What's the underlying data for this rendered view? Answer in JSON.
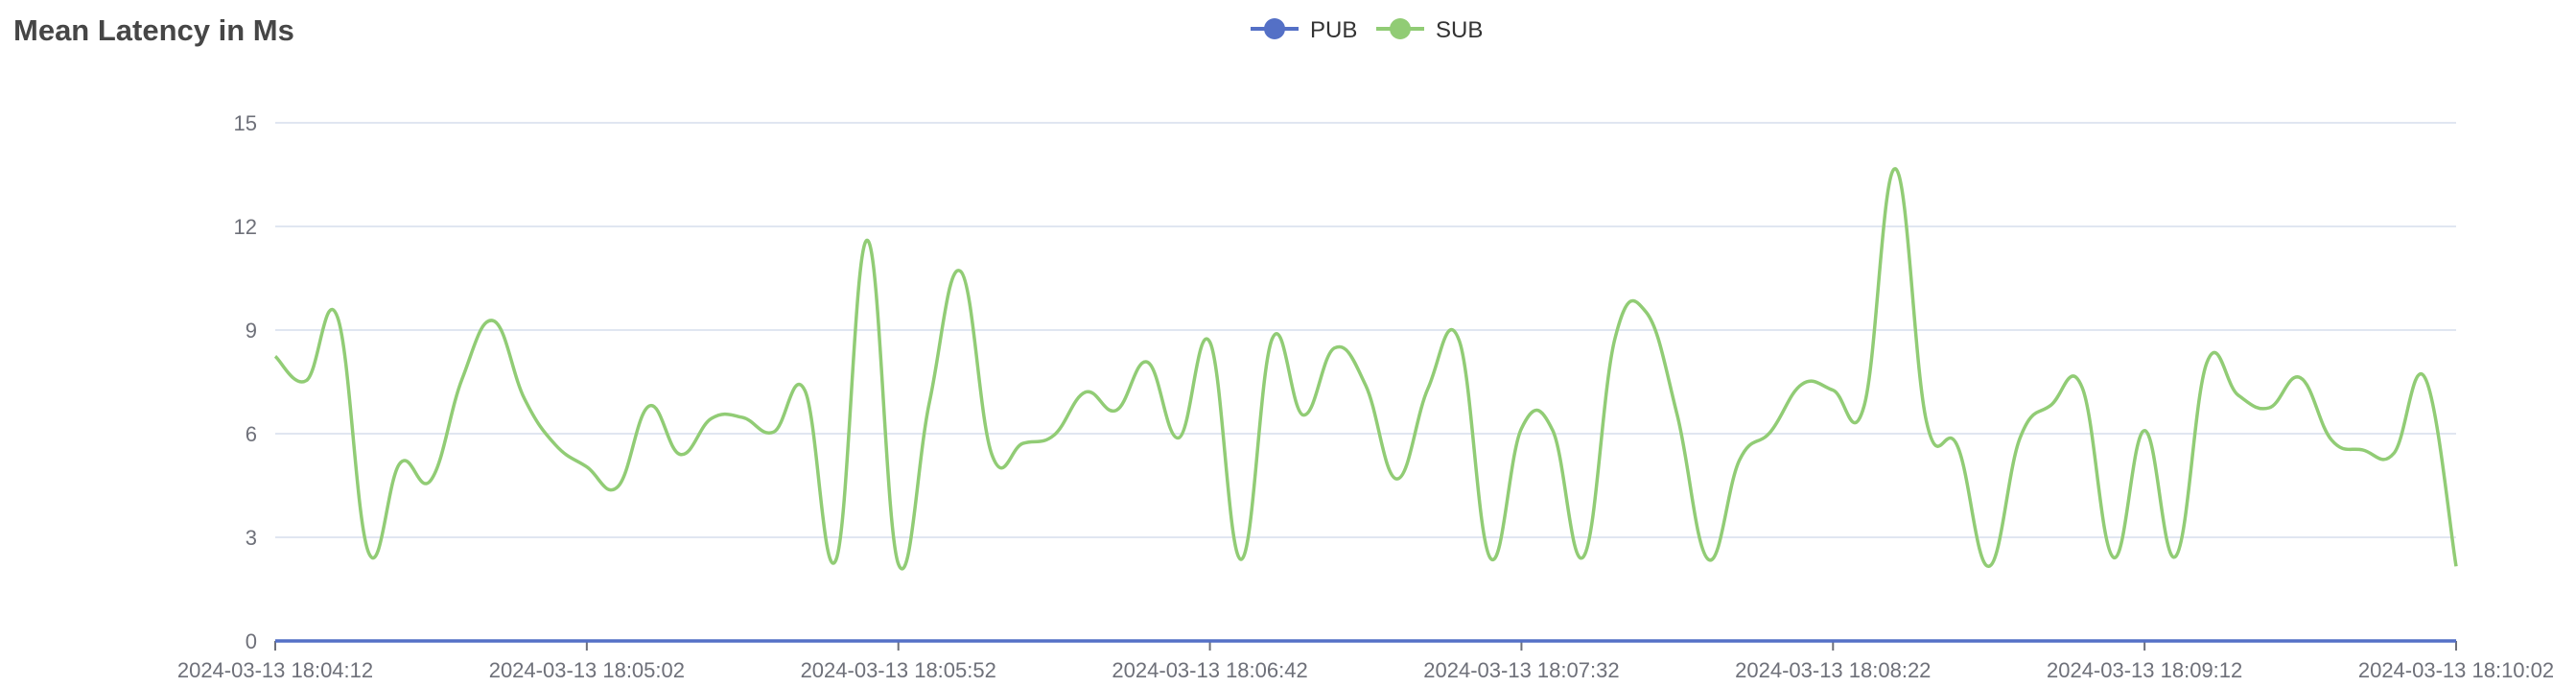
{
  "chart_data": {
    "type": "line",
    "title": "Mean Latency in Ms",
    "xlabel": "",
    "ylabel": "",
    "ylim": [
      0,
      15
    ],
    "yticks": [
      0,
      3,
      6,
      9,
      12,
      15
    ],
    "xtick_labels": [
      "2024-03-13 18:04:12",
      "2024-03-13 18:05:02",
      "2024-03-13 18:05:52",
      "2024-03-13 18:06:42",
      "2024-03-13 18:07:32",
      "2024-03-13 18:08:22",
      "2024-03-13 18:09:12",
      "2024-03-13 18:10:02"
    ],
    "grid": true,
    "smooth": true,
    "legend_position": "top-center",
    "x": [
      "2024-03-13 18:04:12",
      "2024-03-13 18:04:17",
      "2024-03-13 18:04:22",
      "2024-03-13 18:04:27",
      "2024-03-13 18:04:32",
      "2024-03-13 18:04:37",
      "2024-03-13 18:04:42",
      "2024-03-13 18:04:47",
      "2024-03-13 18:04:52",
      "2024-03-13 18:04:57",
      "2024-03-13 18:05:02",
      "2024-03-13 18:05:07",
      "2024-03-13 18:05:12",
      "2024-03-13 18:05:17",
      "2024-03-13 18:05:22",
      "2024-03-13 18:05:27",
      "2024-03-13 18:05:32",
      "2024-03-13 18:05:37",
      "2024-03-13 18:05:42",
      "2024-03-13 18:05:47",
      "2024-03-13 18:05:52",
      "2024-03-13 18:05:57",
      "2024-03-13 18:06:02",
      "2024-03-13 18:06:07",
      "2024-03-13 18:06:12",
      "2024-03-13 18:06:17",
      "2024-03-13 18:06:22",
      "2024-03-13 18:06:27",
      "2024-03-13 18:06:32",
      "2024-03-13 18:06:37",
      "2024-03-13 18:06:42",
      "2024-03-13 18:06:47",
      "2024-03-13 18:06:52",
      "2024-03-13 18:06:57",
      "2024-03-13 18:07:02",
      "2024-03-13 18:07:07",
      "2024-03-13 18:07:12",
      "2024-03-13 18:07:17",
      "2024-03-13 18:07:22",
      "2024-03-13 18:07:27",
      "2024-03-13 18:07:32",
      "2024-03-13 18:07:37",
      "2024-03-13 18:07:42",
      "2024-03-13 18:07:47",
      "2024-03-13 18:07:52",
      "2024-03-13 18:07:57",
      "2024-03-13 18:08:02",
      "2024-03-13 18:08:07",
      "2024-03-13 18:08:12",
      "2024-03-13 18:08:17",
      "2024-03-13 18:08:22",
      "2024-03-13 18:08:27",
      "2024-03-13 18:08:32",
      "2024-03-13 18:08:37",
      "2024-03-13 18:08:42",
      "2024-03-13 18:08:47",
      "2024-03-13 18:08:52",
      "2024-03-13 18:08:57",
      "2024-03-13 18:09:02",
      "2024-03-13 18:09:07",
      "2024-03-13 18:09:12",
      "2024-03-13 18:09:17",
      "2024-03-13 18:09:22",
      "2024-03-13 18:09:27",
      "2024-03-13 18:09:32",
      "2024-03-13 18:09:37",
      "2024-03-13 18:09:42",
      "2024-03-13 18:09:47",
      "2024-03-13 18:09:52",
      "2024-03-13 18:09:57",
      "2024-03-13 18:10:02"
    ],
    "series": [
      {
        "name": "PUB",
        "color": "#5470c6",
        "values": [
          0,
          0,
          0,
          0,
          0,
          0,
          0,
          0,
          0,
          0,
          0,
          0,
          0,
          0,
          0,
          0,
          0,
          0,
          0,
          0,
          0,
          0,
          0,
          0,
          0,
          0,
          0,
          0,
          0,
          0,
          0,
          0,
          0,
          0,
          0,
          0,
          0,
          0,
          0,
          0,
          0,
          0,
          0,
          0,
          0,
          0,
          0,
          0,
          0,
          0,
          0,
          0,
          0,
          0,
          0,
          0,
          0,
          0,
          0,
          0,
          0,
          0,
          0,
          0,
          0,
          0,
          0,
          0,
          0,
          0,
          0
        ]
      },
      {
        "name": "SUB",
        "color": "#91cc75",
        "values": [
          8.24,
          7.54,
          9.37,
          2.55,
          5.14,
          4.66,
          7.59,
          9.27,
          7.01,
          5.67,
          5.04,
          4.47,
          6.8,
          5.4,
          6.44,
          6.47,
          6.05,
          7.25,
          2.35,
          11.6,
          2.23,
          6.92,
          10.7,
          5.4,
          5.72,
          5.96,
          7.2,
          6.68,
          8.07,
          5.88,
          8.65,
          2.36,
          8.75,
          6.54,
          8.48,
          7.4,
          4.69,
          7.31,
          8.7,
          2.4,
          6.15,
          6.1,
          2.45,
          8.75,
          9.52,
          6.54,
          2.36,
          5.24,
          6.06,
          7.43,
          7.26,
          6.81,
          13.67,
          6.35,
          5.63,
          2.16,
          5.87,
          6.83,
          7.33,
          2.42,
          6.09,
          2.45,
          8.06,
          7.12,
          6.75,
          7.62,
          5.82,
          5.53,
          5.43,
          7.62,
          2.16
        ]
      }
    ]
  }
}
